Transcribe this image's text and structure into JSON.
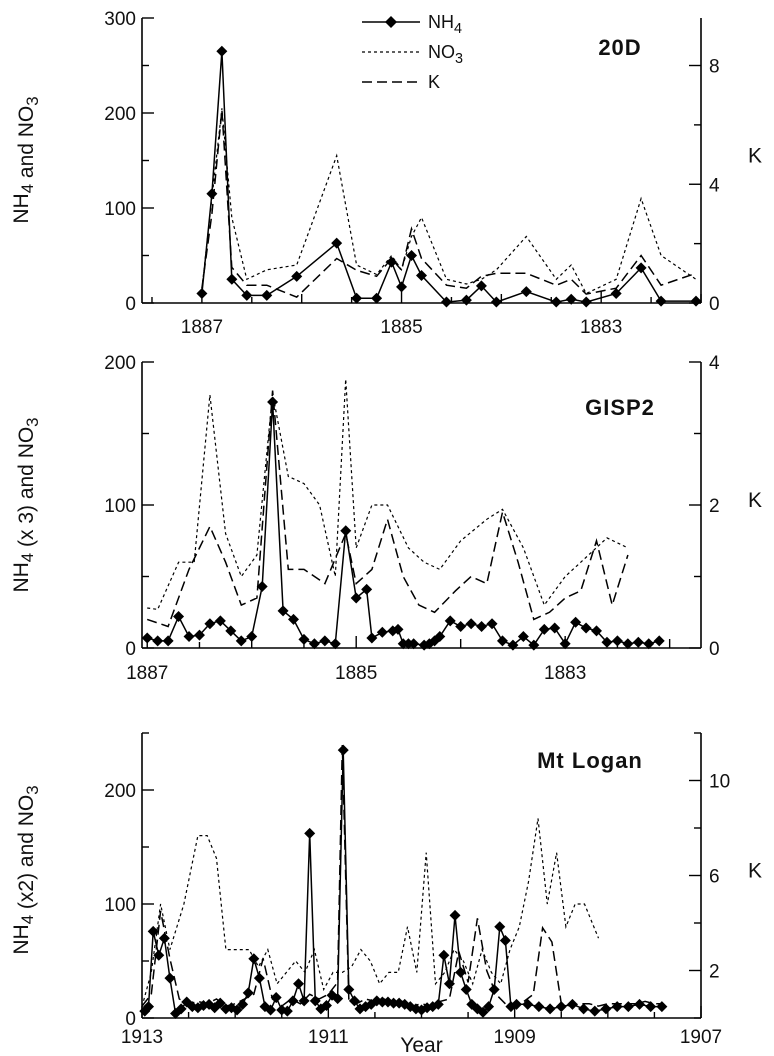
{
  "chart_data": [
    {
      "type": "line",
      "title": "20D",
      "ylabel_left": "NH4 and NO3",
      "ylabel_right": "K",
      "xlim": [
        1887.6,
        1882.0
      ],
      "x_ticks": [
        1887,
        1885,
        1883
      ],
      "ylim_left": [
        0,
        300
      ],
      "y_ticks_left": [
        0,
        100,
        200,
        300
      ],
      "ylim_right": [
        0,
        9.6
      ],
      "y_ticks_right": [
        0,
        4,
        8
      ],
      "legend": {
        "placement": "top-center",
        "entries": [
          "NH4",
          "NO3",
          "K"
        ]
      },
      "series": [
        {
          "name": "NH4",
          "style": "solid-diamond",
          "axis": "left",
          "color": "#000000",
          "x": [
            1887.0,
            1886.9,
            1886.8,
            1886.7,
            1886.55,
            1886.35,
            1886.05,
            1885.65,
            1885.45,
            1885.25,
            1885.1,
            1885.0,
            1884.9,
            1884.8,
            1884.55,
            1884.35,
            1884.2,
            1884.05,
            1883.75,
            1883.45,
            1883.3,
            1883.15,
            1882.85,
            1882.6,
            1882.4,
            1882.05
          ],
          "y": [
            10,
            115,
            265,
            25,
            8,
            8,
            28,
            63,
            5,
            5,
            43,
            17,
            50,
            29,
            1,
            3,
            18,
            1,
            12,
            1,
            4,
            1,
            10,
            37,
            2,
            2
          ]
        },
        {
          "name": "NO3",
          "style": "dotted",
          "axis": "left",
          "color": "#000000",
          "x": [
            1887.0,
            1886.9,
            1886.8,
            1886.7,
            1886.55,
            1886.35,
            1886.05,
            1885.65,
            1885.45,
            1885.25,
            1885.1,
            1885.0,
            1884.9,
            1884.8,
            1884.55,
            1884.35,
            1884.2,
            1884.05,
            1883.75,
            1883.45,
            1883.3,
            1883.15,
            1882.85,
            1882.6,
            1882.4,
            1882.05
          ],
          "y": [
            15,
            110,
            205,
            90,
            25,
            35,
            40,
            155,
            40,
            30,
            50,
            35,
            70,
            90,
            25,
            20,
            25,
            35,
            70,
            25,
            40,
            10,
            25,
            110,
            50,
            25
          ]
        },
        {
          "name": "K",
          "style": "dashed",
          "axis": "right",
          "color": "#000000",
          "x": [
            1887.0,
            1886.9,
            1886.8,
            1886.7,
            1886.55,
            1886.35,
            1886.05,
            1885.65,
            1885.45,
            1885.25,
            1885.1,
            1885.0,
            1884.9,
            1884.8,
            1884.55,
            1884.35,
            1884.2,
            1884.05,
            1883.75,
            1883.45,
            1883.3,
            1883.15,
            1882.85,
            1882.6,
            1882.4,
            1882.05
          ],
          "y": [
            0.5,
            3.0,
            6.5,
            1.2,
            0.6,
            0.6,
            0.2,
            1.5,
            1.1,
            0.9,
            1.5,
            1.1,
            2.5,
            1.5,
            0.6,
            0.5,
            0.9,
            1.0,
            1.0,
            0.6,
            0.8,
            0.3,
            0.5,
            1.6,
            0.6,
            1.0
          ]
        }
      ]
    },
    {
      "type": "line",
      "title": "GISP2",
      "ylabel_left": "NH4 (x 3) and NO3",
      "ylabel_right": "K",
      "xlim": [
        1887.05,
        1881.7
      ],
      "x_ticks": [
        1887,
        1885,
        1883
      ],
      "ylim_left": [
        0,
        200
      ],
      "y_ticks_left": [
        0,
        100,
        200
      ],
      "ylim_right": [
        0,
        4
      ],
      "y_ticks_right": [
        0,
        2,
        4
      ],
      "series": [
        {
          "name": "NH4",
          "style": "solid-diamond",
          "axis": "left",
          "color": "#000000",
          "x": [
            1887.0,
            1886.9,
            1886.8,
            1886.7,
            1886.6,
            1886.5,
            1886.4,
            1886.3,
            1886.2,
            1886.1,
            1886.0,
            1885.9,
            1885.8,
            1885.7,
            1885.6,
            1885.5,
            1885.4,
            1885.3,
            1885.2,
            1885.1,
            1885.0,
            1884.9,
            1884.85,
            1884.75,
            1884.65,
            1884.6,
            1884.55,
            1884.5,
            1884.45,
            1884.35,
            1884.3,
            1884.25,
            1884.2,
            1884.1,
            1884.0,
            1883.9,
            1883.8,
            1883.7,
            1883.6,
            1883.5,
            1883.4,
            1883.3,
            1883.2,
            1883.1,
            1883.0,
            1882.9,
            1882.8,
            1882.7,
            1882.6,
            1882.5,
            1882.4,
            1882.3,
            1882.2,
            1882.1
          ],
          "y": [
            7,
            5,
            5,
            22,
            8,
            9,
            17,
            19,
            12,
            5,
            8,
            43,
            172,
            26,
            20,
            6,
            3,
            5,
            3,
            82,
            35,
            41,
            7,
            11,
            12,
            13,
            3,
            3,
            3,
            2,
            3,
            5,
            8,
            19,
            15,
            17,
            15,
            17,
            5,
            2,
            8,
            2,
            13,
            14,
            3,
            18,
            14,
            12,
            4,
            5,
            3,
            4,
            3,
            5
          ]
        },
        {
          "name": "NO3",
          "style": "dotted",
          "axis": "left",
          "color": "#000000",
          "x": [
            1887.0,
            1886.9,
            1886.7,
            1886.55,
            1886.4,
            1886.25,
            1886.1,
            1885.95,
            1885.8,
            1885.65,
            1885.5,
            1885.35,
            1885.2,
            1885.1,
            1885.0,
            1884.85,
            1884.7,
            1884.5,
            1884.35,
            1884.2,
            1884.0,
            1883.75,
            1883.6,
            1883.4,
            1883.2,
            1883.0,
            1882.85,
            1882.6,
            1882.4
          ],
          "y": [
            28,
            27,
            60,
            60,
            177,
            80,
            50,
            65,
            178,
            120,
            115,
            100,
            50,
            188,
            70,
            100,
            100,
            70,
            60,
            55,
            75,
            90,
            97,
            70,
            30,
            50,
            60,
            77,
            70
          ]
        },
        {
          "name": "K",
          "style": "dashed",
          "axis": "right",
          "color": "#000000",
          "x": [
            1887.0,
            1886.8,
            1886.6,
            1886.4,
            1886.25,
            1886.1,
            1885.95,
            1885.8,
            1885.65,
            1885.5,
            1885.3,
            1885.1,
            1885.0,
            1884.85,
            1884.7,
            1884.55,
            1884.4,
            1884.25,
            1884.05,
            1883.9,
            1883.75,
            1883.6,
            1883.45,
            1883.3,
            1883.15,
            1883.0,
            1882.85,
            1882.7,
            1882.55,
            1882.4
          ],
          "y": [
            0.4,
            0.3,
            1.1,
            1.7,
            1.2,
            0.6,
            0.7,
            3.6,
            1.1,
            1.1,
            0.9,
            1.6,
            0.9,
            1.1,
            1.8,
            1.0,
            0.6,
            0.5,
            0.8,
            1.0,
            0.9,
            1.9,
            1.2,
            0.4,
            0.5,
            0.7,
            0.8,
            1.5,
            0.6,
            1.3
          ]
        }
      ]
    },
    {
      "type": "line",
      "title": "Mt Logan",
      "ylabel_left": "NH4 (x2) and NO3",
      "ylabel_right": "K",
      "xlabel": "Year",
      "xlim": [
        1913.0,
        1907.0
      ],
      "x_ticks": [
        1913,
        1911,
        1909,
        1907
      ],
      "ylim_left": [
        0,
        250
      ],
      "y_ticks_left": [
        0,
        100,
        200
      ],
      "ylim_right": [
        0,
        12
      ],
      "y_ticks_right": [
        2,
        6,
        10
      ],
      "series": [
        {
          "name": "NH4",
          "style": "solid-diamond",
          "axis": "left",
          "color": "#000000",
          "x": [
            1912.97,
            1912.93,
            1912.88,
            1912.82,
            1912.76,
            1912.7,
            1912.64,
            1912.58,
            1912.52,
            1912.46,
            1912.4,
            1912.34,
            1912.28,
            1912.22,
            1912.16,
            1912.1,
            1912.04,
            1911.98,
            1911.92,
            1911.86,
            1911.8,
            1911.74,
            1911.68,
            1911.62,
            1911.56,
            1911.5,
            1911.44,
            1911.38,
            1911.32,
            1911.26,
            1911.2,
            1911.14,
            1911.08,
            1911.02,
            1910.96,
            1910.9,
            1910.84,
            1910.78,
            1910.72,
            1910.66,
            1910.6,
            1910.54,
            1910.48,
            1910.42,
            1910.36,
            1910.3,
            1910.24,
            1910.18,
            1910.12,
            1910.06,
            1910.0,
            1909.94,
            1909.88,
            1909.82,
            1909.76,
            1909.7,
            1909.64,
            1909.58,
            1909.52,
            1909.46,
            1909.4,
            1909.34,
            1909.28,
            1909.22,
            1909.16,
            1909.1,
            1909.04,
            1908.98,
            1908.86,
            1908.74,
            1908.62,
            1908.5,
            1908.38,
            1908.26,
            1908.14,
            1908.02,
            1907.9,
            1907.78,
            1907.66,
            1907.54,
            1907.42
          ],
          "y": [
            6,
            10,
            76,
            55,
            70,
            35,
            4,
            8,
            14,
            10,
            9,
            11,
            12,
            9,
            13,
            8,
            9,
            7,
            12,
            22,
            52,
            35,
            10,
            7,
            18,
            7,
            6,
            15,
            30,
            15,
            162,
            15,
            8,
            11,
            20,
            17,
            235,
            25,
            15,
            8,
            10,
            12,
            15,
            14,
            14,
            13,
            13,
            12,
            10,
            8,
            7,
            9,
            10,
            12,
            55,
            30,
            90,
            40,
            25,
            12,
            8,
            5,
            10,
            25,
            80,
            68,
            10,
            12,
            12,
            10,
            8,
            10,
            12,
            8,
            6,
            8,
            10,
            10,
            12,
            10,
            10
          ]
        },
        {
          "name": "NO3",
          "style": "dotted",
          "axis": "left",
          "color": "#000000",
          "x": [
            1913.0,
            1912.9,
            1912.8,
            1912.7,
            1912.55,
            1912.4,
            1912.3,
            1912.2,
            1912.1,
            1912.0,
            1911.85,
            1911.75,
            1911.65,
            1911.55,
            1911.45,
            1911.35,
            1911.25,
            1911.15,
            1911.05,
            1910.95,
            1910.85,
            1910.75,
            1910.65,
            1910.55,
            1910.45,
            1910.35,
            1910.25,
            1910.15,
            1910.05,
            1909.95,
            1909.85,
            1909.75,
            1909.65,
            1909.55,
            1909.45,
            1909.35,
            1909.25,
            1909.15,
            1909.05,
            1908.95,
            1908.85,
            1908.75,
            1908.65,
            1908.55,
            1908.45,
            1908.35,
            1908.25,
            1908.1
          ],
          "y": [
            10,
            40,
            100,
            60,
            100,
            160,
            160,
            140,
            60,
            60,
            60,
            45,
            60,
            30,
            40,
            50,
            40,
            60,
            25,
            40,
            40,
            45,
            60,
            50,
            30,
            40,
            40,
            80,
            40,
            145,
            30,
            40,
            60,
            50,
            30,
            60,
            40,
            30,
            60,
            80,
            120,
            175,
            100,
            145,
            80,
            100,
            100,
            70
          ]
        },
        {
          "name": "K",
          "style": "dashed",
          "axis": "right",
          "color": "#000000",
          "x": [
            1913.0,
            1912.9,
            1912.8,
            1912.7,
            1912.6,
            1912.5,
            1912.4,
            1912.3,
            1912.2,
            1912.1,
            1912.0,
            1911.9,
            1911.8,
            1911.7,
            1911.6,
            1911.5,
            1911.4,
            1911.3,
            1911.2,
            1911.1,
            1911.0,
            1910.9,
            1910.85,
            1910.78,
            1910.7,
            1910.6,
            1910.5,
            1910.4,
            1910.3,
            1910.2,
            1910.1,
            1910.0,
            1909.9,
            1909.8,
            1909.7,
            1909.6,
            1909.5,
            1909.4,
            1909.3,
            1909.2,
            1909.1,
            1909.0,
            1908.9,
            1908.8,
            1908.7,
            1908.6,
            1908.5,
            1908.4,
            1908.3,
            1908.2,
            1908.1,
            1908.0,
            1907.9,
            1907.8,
            1907.7,
            1907.6,
            1907.5,
            1907.4
          ],
          "y": [
            0.5,
            1.0,
            4.5,
            2.5,
            0.8,
            0.6,
            0.7,
            0.6,
            0.8,
            0.5,
            0.6,
            0.8,
            1.0,
            2.5,
            0.8,
            0.5,
            0.8,
            0.6,
            1.0,
            0.8,
            1.0,
            1.5,
            11.5,
            0.8,
            0.6,
            0.8,
            0.7,
            0.8,
            0.6,
            0.7,
            0.5,
            0.6,
            0.5,
            0.7,
            0.8,
            2.8,
            1.5,
            4.2,
            2.0,
            1.0,
            0.6,
            0.5,
            0.7,
            1.0,
            3.8,
            3.2,
            0.6,
            0.5,
            0.6,
            0.6,
            0.5,
            0.6,
            0.6,
            0.6,
            0.6,
            0.7,
            0.6,
            0.6
          ]
        }
      ]
    }
  ]
}
